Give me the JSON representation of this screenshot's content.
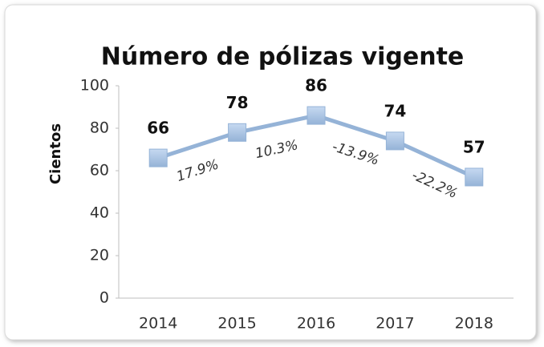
{
  "chart_data": {
    "type": "line",
    "title": "Número de pólizas vigente",
    "y_label": "Cientos",
    "categories": [
      "2014",
      "2015",
      "2016",
      "2017",
      "2018"
    ],
    "series": [
      {
        "name": "Número de pólizas vigente",
        "color": "#95b3d7",
        "values": [
          66,
          78,
          86,
          74,
          57
        ]
      }
    ],
    "annotations": [
      "17.9%",
      "10.3%",
      "-13.9%",
      "-22.2%"
    ],
    "ylim": [
      0,
      100
    ],
    "yticks": [
      0,
      20,
      40,
      60,
      80,
      100
    ],
    "grid": false
  }
}
